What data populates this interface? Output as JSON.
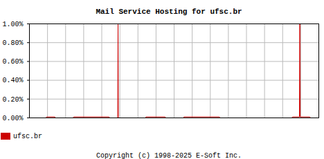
{
  "chart_data": {
    "type": "line",
    "title": "Mail Service Hosting for ufsc.br",
    "annotations": [
      "Copyright (c) 1998-2025 E-Soft Inc."
    ],
    "x": [
      0,
      0.9,
      0.95,
      1.4,
      1.45,
      2.4,
      2.45,
      4.4,
      4.45,
      4.88,
      4.9,
      4.92,
      6.4,
      6.45,
      7.5,
      7.55,
      8.5,
      8.55,
      10.5,
      10.55,
      14.5,
      14.55,
      14.93,
      14.95,
      14.97,
      15.5,
      15.55,
      16
    ],
    "series": [
      {
        "name": "ufsc.br",
        "color": "#cc0000",
        "values": [
          0,
          0,
          0.01,
          0.01,
          0,
          0,
          0.01,
          0.01,
          0,
          0,
          1.0,
          0,
          0,
          0.01,
          0.01,
          0,
          0,
          0.01,
          0.01,
          0,
          0,
          0.01,
          0.01,
          1.0,
          0.01,
          0.01,
          0,
          0
        ]
      }
    ],
    "xlim": [
      0,
      16
    ],
    "xticks": [
      0,
      1,
      2,
      3,
      4,
      5,
      6,
      7,
      8,
      9,
      10,
      11,
      12,
      13,
      14,
      15,
      16
    ],
    "ylim": [
      0,
      1
    ],
    "yticks": [
      {
        "value": 0,
        "label": "0.00%"
      },
      {
        "value": 0.2,
        "label": "0.20%"
      },
      {
        "value": 0.4,
        "label": "0.40%"
      },
      {
        "value": 0.6,
        "label": "0.60%"
      },
      {
        "value": 0.8,
        "label": "0.80%"
      },
      {
        "value": 1,
        "label": "1.00%"
      }
    ],
    "grid": true,
    "legend": "bottom",
    "tick_labels": "y"
  }
}
